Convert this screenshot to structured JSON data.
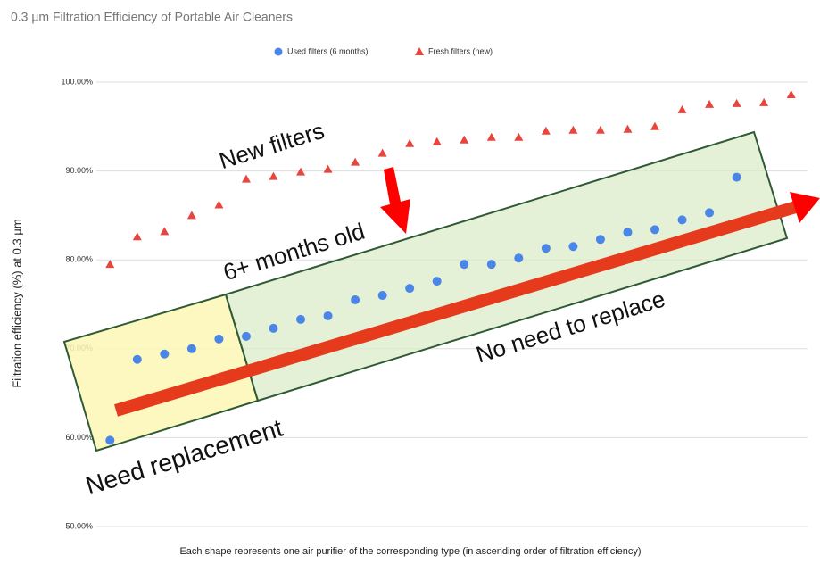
{
  "chart_data": {
    "type": "scatter",
    "title": "0.3 µm Filtration Efficiency of Portable Air Cleaners",
    "x_label": "Each shape represents one air purifier of the corresponding type (in ascending order of filtration efficiency)",
    "y_label": "Filtration efficiency (%) at 0.3 µm",
    "x": [
      1,
      2,
      3,
      4,
      5,
      6,
      7,
      8,
      9,
      10,
      11,
      12,
      13,
      14,
      15,
      16,
      17,
      18,
      19,
      20,
      21,
      22,
      23,
      24,
      25,
      26
    ],
    "series": [
      {
        "name": "Used filters (6 months)",
        "color": "#4a86e8",
        "marker": "circle",
        "values": [
          59.7,
          68.8,
          69.4,
          70.0,
          71.1,
          71.4,
          72.3,
          73.3,
          73.7,
          75.5,
          76.0,
          76.8,
          77.6,
          79.5,
          79.5,
          80.2,
          81.3,
          81.5,
          82.3,
          83.1,
          83.4,
          84.5,
          85.3,
          89.3,
          null,
          null
        ]
      },
      {
        "name": "Fresh filters (new)",
        "color": "#e8453c",
        "marker": "triangle",
        "values": [
          79.5,
          82.6,
          83.2,
          85.0,
          86.2,
          89.1,
          89.4,
          89.9,
          90.2,
          91.0,
          92.0,
          93.1,
          93.3,
          93.5,
          93.8,
          93.8,
          94.5,
          94.6,
          94.6,
          94.7,
          95.0,
          96.9,
          97.5,
          97.6,
          97.7,
          98.6
        ]
      }
    ],
    "xlim": [
      0.5,
      26.6
    ],
    "ylim": [
      50,
      100
    ],
    "yticks": [
      {
        "value": 50,
        "label": "50.00%"
      },
      {
        "value": 60,
        "label": "60.00%"
      },
      {
        "value": 70,
        "label": "70.00%"
      },
      {
        "value": 80,
        "label": "80.00%"
      },
      {
        "value": 90,
        "label": "90.00%"
      },
      {
        "value": 100,
        "label": "100.00%"
      }
    ],
    "grid": true,
    "legend": "top",
    "annotations": [
      "New filters",
      "6+ months old",
      "No need to replace",
      "Need replacement"
    ]
  }
}
